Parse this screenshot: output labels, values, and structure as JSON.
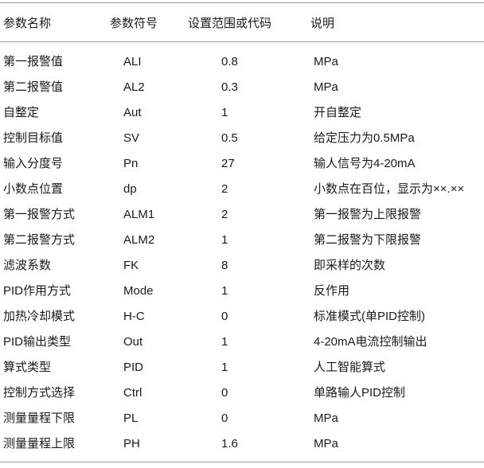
{
  "table": {
    "headers": [
      "参数名称",
      "参数符号",
      "设置范围或代码",
      "说明"
    ],
    "rows": [
      [
        "第一报警值",
        "ALI",
        "0.8",
        "MPa"
      ],
      [
        "第二报警值",
        "AL2",
        "0.3",
        "MPa"
      ],
      [
        "自整定",
        "Aut",
        "1",
        "开自整定"
      ],
      [
        "控制目标值",
        "SV",
        "0.5",
        "给定压力为0.5MPa"
      ],
      [
        "输入分度号",
        "Pn",
        "27",
        "输人信号为4-20mA"
      ],
      [
        "小数点位置",
        "dp",
        "2",
        "小数点在百位，显示为××.××"
      ],
      [
        "第一报警方式",
        "ALM1",
        "2",
        "第一报警为上限报警"
      ],
      [
        "第二报警方式",
        "ALM2",
        "1",
        "第二报警为下限报警"
      ],
      [
        "滤波系数",
        "FK",
        "8",
        "即采样的次数"
      ],
      [
        "PID作用方式",
        "Mode",
        "1",
        "反作用"
      ],
      [
        "加热冷却模式",
        "H-C",
        "0",
        "标准模式(单PID控制)"
      ],
      [
        "PID输出类型",
        "Out",
        "1",
        "4-20mA电流控制输出"
      ],
      [
        "算式类型",
        "PID",
        "1",
        "人工智能算式"
      ],
      [
        "控制方式选择",
        "Ctrl",
        "0",
        "单路输人PID控制"
      ],
      [
        "测量量程下限",
        "PL",
        "0",
        "MPa"
      ],
      [
        "测量量程上限",
        "PH",
        "1.6",
        "MPa"
      ]
    ]
  }
}
